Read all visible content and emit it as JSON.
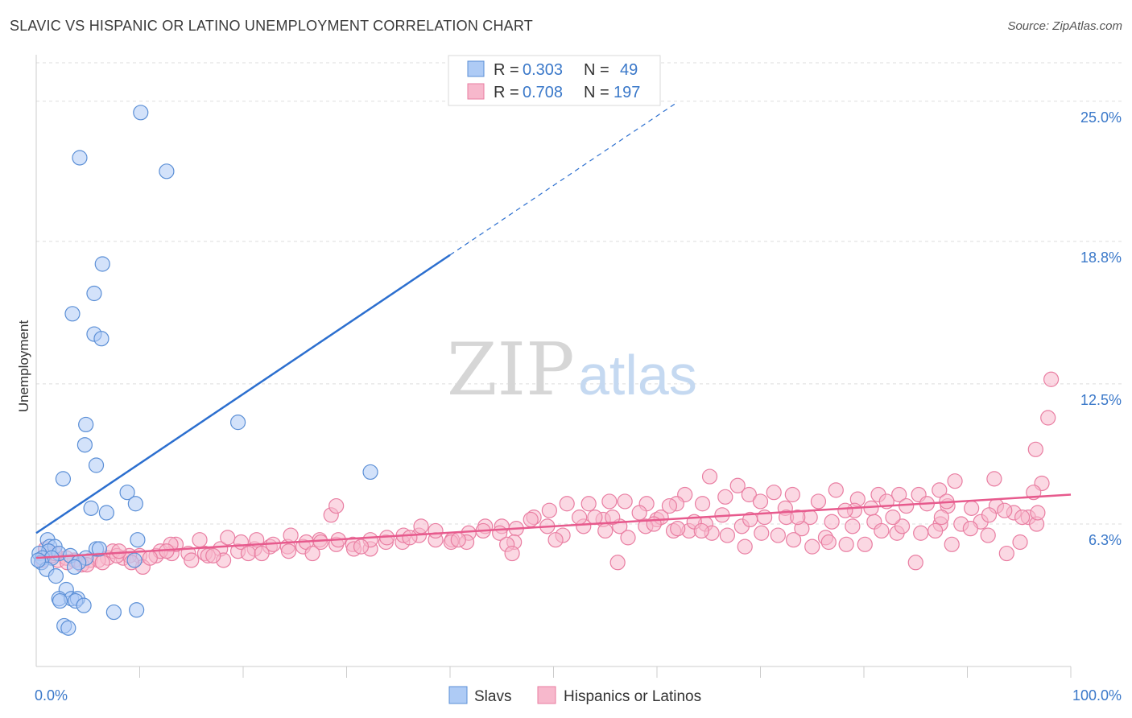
{
  "title": "SLAVIC VS HISPANIC OR LATINO UNEMPLOYMENT CORRELATION CHART",
  "source": "Source: ZipAtlas.com",
  "watermark": {
    "part1": "ZIP",
    "part2": "atlas"
  },
  "colors": {
    "slavs_fill": "#aecbf5",
    "slavs_stroke": "#5b8fd6",
    "slavs_line": "#2c6fcf",
    "hisp_fill": "#f7b8cc",
    "hisp_stroke": "#e97ea2",
    "hisp_line": "#e75a8d",
    "grid": "#dddddd",
    "tick_label": "#3a78c9"
  },
  "legend": {
    "r_label": "R =",
    "n_label": "N =",
    "rows": [
      {
        "r": "0.303",
        "n": "49"
      },
      {
        "r": "0.708",
        "n": "197"
      }
    ]
  },
  "bottom_legend": [
    "Slavs",
    "Hispanics or Latinos"
  ],
  "chart_data": {
    "type": "scatter",
    "title": "SLAVIC VS HISPANIC OR LATINO UNEMPLOYMENT CORRELATION CHART",
    "xlabel": "",
    "ylabel": "Unemployment",
    "xlim": [
      0,
      100
    ],
    "ylim": [
      0,
      26.7
    ],
    "x_tick_labels": [
      "0.0%",
      "100.0%"
    ],
    "y_ticks": [
      6.3,
      12.5,
      18.8,
      25.0
    ],
    "y_tick_labels": [
      "6.3%",
      "12.5%",
      "18.8%",
      "25.0%"
    ],
    "grid": true,
    "legend_position": "top-center",
    "series": [
      {
        "name": "Slavs",
        "r": 0.303,
        "n": 49,
        "trend": {
          "x0": 0,
          "y0": 5.9,
          "x1": 40,
          "y1": 18.2,
          "dashed_to_x": 62
        },
        "points": [
          [
            10.1,
            24.5
          ],
          [
            4.2,
            22.5
          ],
          [
            12.6,
            21.9
          ],
          [
            6.4,
            17.8
          ],
          [
            5.6,
            16.5
          ],
          [
            3.5,
            15.6
          ],
          [
            5.6,
            14.7
          ],
          [
            6.3,
            14.5
          ],
          [
            19.5,
            10.8
          ],
          [
            4.8,
            10.7
          ],
          [
            4.7,
            9.8
          ],
          [
            5.8,
            8.9
          ],
          [
            32.3,
            8.6
          ],
          [
            2.6,
            8.3
          ],
          [
            8.8,
            7.7
          ],
          [
            9.6,
            7.2
          ],
          [
            5.3,
            7.0
          ],
          [
            6.8,
            6.8
          ],
          [
            1.1,
            5.6
          ],
          [
            9.8,
            5.6
          ],
          [
            1.3,
            5.3
          ],
          [
            1.8,
            5.3
          ],
          [
            5.8,
            5.2
          ],
          [
            6.1,
            5.2
          ],
          [
            1.2,
            5.1
          ],
          [
            0.3,
            5.0
          ],
          [
            2.2,
            5.0
          ],
          [
            3.3,
            4.9
          ],
          [
            0.6,
            4.8
          ],
          [
            1.5,
            4.8
          ],
          [
            4.8,
            4.8
          ],
          [
            9.5,
            4.7
          ],
          [
            0.5,
            4.6
          ],
          [
            4.1,
            4.6
          ],
          [
            3.7,
            4.4
          ],
          [
            1.0,
            4.3
          ],
          [
            1.9,
            4.0
          ],
          [
            2.9,
            3.4
          ],
          [
            2.2,
            3.0
          ],
          [
            3.4,
            3.0
          ],
          [
            4.0,
            3.0
          ],
          [
            2.3,
            2.9
          ],
          [
            3.8,
            2.9
          ],
          [
            4.6,
            2.7
          ],
          [
            7.5,
            2.4
          ],
          [
            9.7,
            2.5
          ],
          [
            2.7,
            1.8
          ],
          [
            3.1,
            1.7
          ],
          [
            0.2,
            4.7
          ]
        ]
      },
      {
        "name": "Hispanics or Latinos",
        "r": 0.708,
        "n": 197,
        "trend": {
          "x0": 0,
          "y0": 4.8,
          "x1": 100,
          "y1": 7.6
        },
        "points": [
          [
            98.1,
            12.7
          ],
          [
            97.8,
            11.0
          ],
          [
            96.6,
            9.6
          ],
          [
            97.2,
            8.1
          ],
          [
            96.4,
            7.7
          ],
          [
            92.6,
            8.3
          ],
          [
            88.8,
            8.2
          ],
          [
            87.3,
            7.8
          ],
          [
            85.3,
            7.6
          ],
          [
            83.4,
            7.6
          ],
          [
            81.4,
            7.6
          ],
          [
            79.4,
            7.4
          ],
          [
            77.3,
            7.8
          ],
          [
            75.6,
            7.3
          ],
          [
            73.1,
            7.6
          ],
          [
            71.3,
            7.7
          ],
          [
            68.9,
            7.6
          ],
          [
            66.6,
            7.5
          ],
          [
            64.4,
            7.2
          ],
          [
            62.7,
            7.6
          ],
          [
            61.9,
            7.2
          ],
          [
            59.0,
            7.2
          ],
          [
            56.9,
            7.3
          ],
          [
            55.4,
            7.3
          ],
          [
            53.4,
            7.2
          ],
          [
            65.1,
            8.4
          ],
          [
            67.8,
            8.0
          ],
          [
            70.0,
            7.3
          ],
          [
            72.4,
            7.0
          ],
          [
            74.8,
            6.6
          ],
          [
            76.9,
            6.4
          ],
          [
            79.1,
            6.9
          ],
          [
            80.7,
            7.0
          ],
          [
            82.2,
            7.3
          ],
          [
            84.1,
            7.1
          ],
          [
            86.1,
            7.2
          ],
          [
            88.1,
            7.1
          ],
          [
            90.4,
            7.0
          ],
          [
            92.8,
            7.1
          ],
          [
            94.5,
            6.8
          ],
          [
            95.9,
            6.6
          ],
          [
            96.7,
            6.3
          ],
          [
            95.3,
            6.6
          ],
          [
            93.6,
            6.9
          ],
          [
            91.3,
            6.4
          ],
          [
            89.4,
            6.3
          ],
          [
            87.4,
            6.3
          ],
          [
            85.5,
            5.9
          ],
          [
            83.2,
            5.9
          ],
          [
            81.0,
            6.4
          ],
          [
            78.9,
            6.2
          ],
          [
            76.3,
            5.7
          ],
          [
            74.0,
            6.1
          ],
          [
            72.5,
            6.6
          ],
          [
            70.4,
            6.6
          ],
          [
            68.2,
            6.2
          ],
          [
            66.3,
            6.7
          ],
          [
            64.7,
            6.3
          ],
          [
            63.1,
            6.0
          ],
          [
            61.6,
            6.0
          ],
          [
            60.0,
            6.5
          ],
          [
            58.3,
            6.8
          ],
          [
            56.4,
            6.2
          ],
          [
            54.8,
            6.5
          ],
          [
            52.9,
            6.2
          ],
          [
            51.3,
            7.2
          ],
          [
            49.6,
            6.9
          ],
          [
            48.1,
            6.6
          ],
          [
            46.4,
            6.1
          ],
          [
            45.0,
            6.2
          ],
          [
            43.4,
            6.2
          ],
          [
            41.8,
            5.9
          ],
          [
            40.2,
            5.6
          ],
          [
            38.6,
            5.6
          ],
          [
            37.0,
            5.8
          ],
          [
            35.4,
            5.5
          ],
          [
            33.8,
            5.5
          ],
          [
            32.3,
            5.2
          ],
          [
            30.6,
            5.4
          ],
          [
            29.0,
            5.4
          ],
          [
            27.4,
            5.6
          ],
          [
            25.8,
            5.3
          ],
          [
            24.3,
            5.3
          ],
          [
            22.6,
            5.3
          ],
          [
            21.1,
            5.2
          ],
          [
            19.5,
            5.1
          ],
          [
            17.8,
            5.2
          ],
          [
            16.3,
            5.0
          ],
          [
            14.7,
            5.0
          ],
          [
            13.1,
            5.0
          ],
          [
            11.6,
            4.9
          ],
          [
            10.0,
            4.9
          ],
          [
            8.4,
            4.8
          ],
          [
            6.9,
            4.8
          ],
          [
            5.2,
            4.7
          ],
          [
            3.7,
            4.7
          ],
          [
            2.1,
            4.7
          ],
          [
            0.6,
            4.7
          ],
          [
            1.5,
            4.9
          ],
          [
            2.9,
            4.8
          ],
          [
            4.4,
            4.5
          ],
          [
            6.0,
            4.7
          ],
          [
            7.4,
            5.1
          ],
          [
            9.0,
            4.9
          ],
          [
            10.3,
            4.4
          ],
          [
            12.0,
            5.1
          ],
          [
            13.5,
            5.4
          ],
          [
            15.0,
            4.7
          ],
          [
            16.6,
            4.9
          ],
          [
            18.1,
            4.7
          ],
          [
            19.8,
            5.5
          ],
          [
            21.3,
            5.6
          ],
          [
            22.9,
            5.4
          ],
          [
            24.4,
            5.1
          ],
          [
            26.1,
            5.5
          ],
          [
            27.5,
            5.5
          ],
          [
            29.2,
            5.6
          ],
          [
            30.7,
            5.2
          ],
          [
            32.3,
            5.6
          ],
          [
            33.9,
            5.7
          ],
          [
            35.5,
            5.8
          ],
          [
            37.2,
            6.2
          ],
          [
            38.6,
            6.0
          ],
          [
            40.1,
            5.5
          ],
          [
            41.6,
            5.5
          ],
          [
            43.2,
            6.0
          ],
          [
            44.8,
            5.9
          ],
          [
            46.2,
            5.5
          ],
          [
            47.8,
            6.5
          ],
          [
            49.4,
            6.2
          ],
          [
            50.9,
            5.8
          ],
          [
            52.5,
            6.6
          ],
          [
            54.0,
            6.6
          ],
          [
            55.7,
            6.6
          ],
          [
            57.2,
            5.7
          ],
          [
            58.9,
            6.2
          ],
          [
            60.4,
            6.6
          ],
          [
            62.0,
            6.1
          ],
          [
            63.6,
            6.4
          ],
          [
            65.3,
            5.9
          ],
          [
            66.8,
            5.8
          ],
          [
            68.5,
            5.3
          ],
          [
            70.1,
            5.9
          ],
          [
            71.7,
            5.8
          ],
          [
            73.2,
            5.6
          ],
          [
            75.0,
            5.3
          ],
          [
            76.6,
            5.5
          ],
          [
            78.3,
            5.4
          ],
          [
            80.1,
            5.4
          ],
          [
            81.7,
            6.0
          ],
          [
            83.7,
            6.2
          ],
          [
            85.0,
            4.6
          ],
          [
            86.9,
            6.0
          ],
          [
            88.5,
            5.4
          ],
          [
            90.3,
            6.1
          ],
          [
            92.0,
            5.8
          ],
          [
            93.8,
            5.0
          ],
          [
            95.1,
            5.5
          ],
          [
            28.5,
            6.7
          ],
          [
            29.0,
            7.1
          ],
          [
            24.6,
            5.8
          ],
          [
            20.5,
            5.0
          ],
          [
            18.5,
            5.7
          ],
          [
            15.8,
            5.6
          ],
          [
            13.0,
            5.4
          ],
          [
            11.0,
            4.8
          ],
          [
            9.2,
            4.6
          ],
          [
            7.8,
            4.9
          ],
          [
            6.4,
            4.6
          ],
          [
            4.9,
            4.5
          ],
          [
            3.0,
            4.6
          ],
          [
            1.8,
            5.0
          ],
          [
            0.9,
            5.2
          ],
          [
            8.0,
            5.1
          ],
          [
            12.6,
            5.1
          ],
          [
            17.1,
            4.9
          ],
          [
            21.8,
            5.0
          ],
          [
            26.7,
            5.0
          ],
          [
            31.4,
            5.3
          ],
          [
            36.1,
            5.7
          ],
          [
            40.8,
            5.6
          ],
          [
            45.5,
            5.4
          ],
          [
            50.2,
            5.6
          ],
          [
            55.0,
            6.0
          ],
          [
            59.7,
            6.3
          ],
          [
            64.3,
            6.0
          ],
          [
            69.0,
            6.5
          ],
          [
            73.6,
            6.6
          ],
          [
            78.2,
            6.9
          ],
          [
            82.8,
            6.6
          ],
          [
            87.5,
            6.6
          ],
          [
            92.1,
            6.7
          ],
          [
            96.8,
            6.8
          ],
          [
            46.0,
            5.0
          ],
          [
            56.2,
            4.6
          ],
          [
            61.2,
            7.1
          ],
          [
            88.0,
            7.3
          ]
        ]
      }
    ]
  }
}
